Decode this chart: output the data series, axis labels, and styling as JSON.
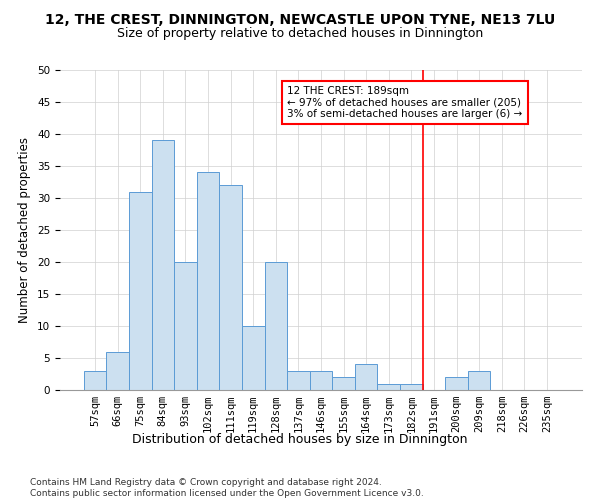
{
  "title1": "12, THE CREST, DINNINGTON, NEWCASTLE UPON TYNE, NE13 7LU",
  "title2": "Size of property relative to detached houses in Dinnington",
  "xlabel": "Distribution of detached houses by size in Dinnington",
  "ylabel": "Number of detached properties",
  "bar_labels": [
    "57sqm",
    "66sqm",
    "75sqm",
    "84sqm",
    "93sqm",
    "102sqm",
    "111sqm",
    "119sqm",
    "128sqm",
    "137sqm",
    "146sqm",
    "155sqm",
    "164sqm",
    "173sqm",
    "182sqm",
    "191sqm",
    "200sqm",
    "209sqm",
    "218sqm",
    "226sqm",
    "235sqm"
  ],
  "bar_values": [
    3,
    6,
    31,
    39,
    20,
    34,
    32,
    10,
    20,
    3,
    3,
    2,
    4,
    1,
    1,
    0,
    2,
    3,
    0,
    0,
    0
  ],
  "bar_color": "#cce0f0",
  "bar_edge_color": "#5b9bd5",
  "grid_color": "#d0d0d0",
  "ref_line_color": "red",
  "annotation_text": "12 THE CREST: 189sqm\n← 97% of detached houses are smaller (205)\n3% of semi-detached houses are larger (6) →",
  "annotation_box_color": "red",
  "ylim": [
    0,
    50
  ],
  "yticks": [
    0,
    5,
    10,
    15,
    20,
    25,
    30,
    35,
    40,
    45,
    50
  ],
  "footnote": "Contains HM Land Registry data © Crown copyright and database right 2024.\nContains public sector information licensed under the Open Government Licence v3.0.",
  "title1_fontsize": 10,
  "title2_fontsize": 9,
  "xlabel_fontsize": 9,
  "ylabel_fontsize": 8.5,
  "tick_fontsize": 7.5,
  "annot_fontsize": 7.5,
  "footnote_fontsize": 6.5
}
